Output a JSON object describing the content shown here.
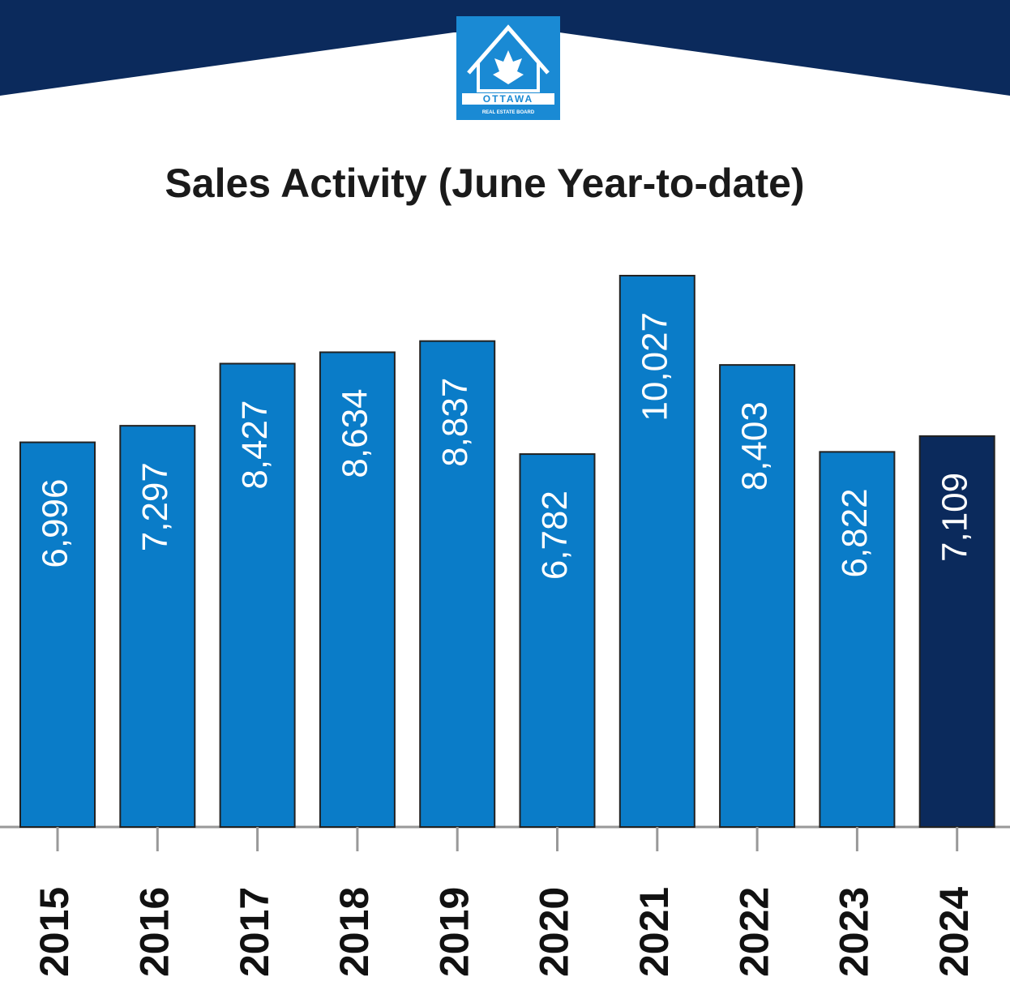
{
  "logo": {
    "text": "OTTAWA",
    "subtext": "REAL ESTATE BOARD"
  },
  "chart_data": {
    "type": "bar",
    "title": "Sales Activity (June Year-to-date)",
    "categories": [
      "2015",
      "2016",
      "2017",
      "2018",
      "2019",
      "2020",
      "2021",
      "2022",
      "2023",
      "2024"
    ],
    "values": [
      6996,
      7297,
      8427,
      8634,
      8837,
      6782,
      10027,
      8403,
      6822,
      7109
    ],
    "value_labels": [
      "6,996",
      "7,297",
      "8,427",
      "8,634",
      "8,837",
      "6,782",
      "10,027",
      "8,403",
      "6,822",
      "7,109"
    ],
    "colors": [
      "#0a7cc8",
      "#0a7cc8",
      "#0a7cc8",
      "#0a7cc8",
      "#0a7cc8",
      "#0a7cc8",
      "#0a7cc8",
      "#0a7cc8",
      "#0a7cc8",
      "#0b2a5c"
    ],
    "ylim": [
      0,
      11000
    ]
  }
}
